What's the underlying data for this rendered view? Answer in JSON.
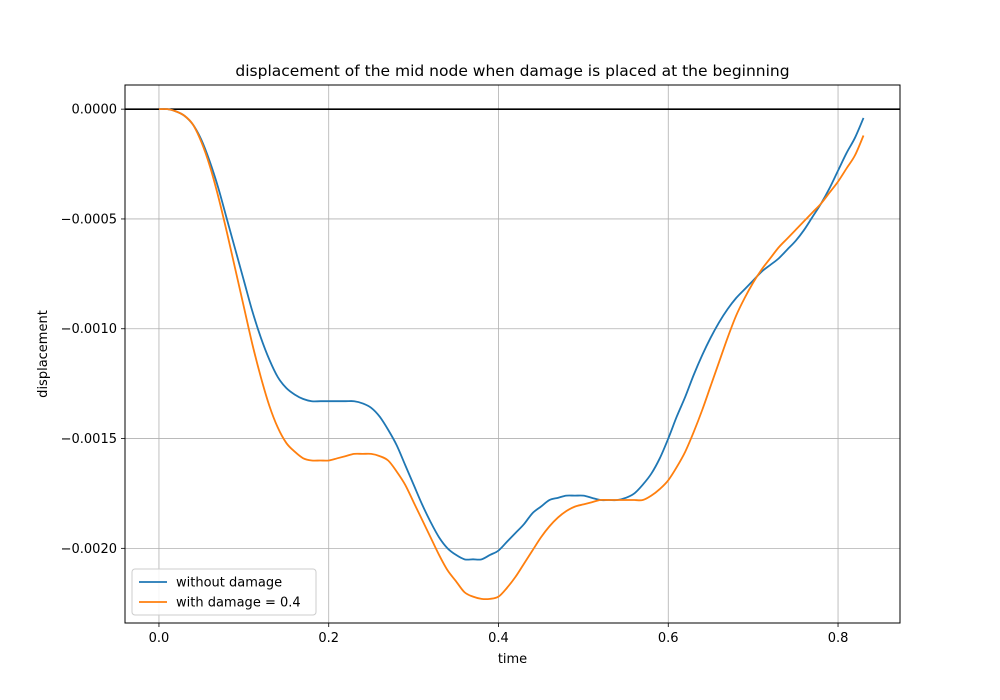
{
  "chart_data": {
    "type": "line",
    "title": "displacement of the mid node when damage is placed at the beginning",
    "xlabel": "time",
    "ylabel": "displacement",
    "xlim": [
      -0.04,
      0.873
    ],
    "ylim": [
      -0.00234,
      0.00011
    ],
    "x_ticks": [
      0.0,
      0.2,
      0.4,
      0.6,
      0.8
    ],
    "x_tick_labels": [
      "0.0",
      "0.2",
      "0.4",
      "0.6",
      "0.8"
    ],
    "y_ticks": [
      0.0,
      -0.0005,
      -0.001,
      -0.0015,
      -0.002
    ],
    "y_tick_labels": [
      "0.0000",
      "−0.0005",
      "−0.0010",
      "−0.0015",
      "−0.0020"
    ],
    "grid": true,
    "reference_line_y": 0.0,
    "legend": {
      "placement": "lower-left"
    },
    "series": [
      {
        "name": "without damage",
        "color": "#1f77b4",
        "x": [
          0.0,
          0.01,
          0.02,
          0.03,
          0.04,
          0.05,
          0.06,
          0.07,
          0.08,
          0.09,
          0.1,
          0.11,
          0.12,
          0.13,
          0.14,
          0.15,
          0.16,
          0.17,
          0.18,
          0.19,
          0.2,
          0.21,
          0.22,
          0.23,
          0.24,
          0.25,
          0.26,
          0.27,
          0.28,
          0.29,
          0.3,
          0.31,
          0.32,
          0.33,
          0.34,
          0.35,
          0.36,
          0.37,
          0.38,
          0.39,
          0.4,
          0.41,
          0.42,
          0.43,
          0.44,
          0.45,
          0.46,
          0.47,
          0.48,
          0.49,
          0.5,
          0.51,
          0.52,
          0.53,
          0.54,
          0.55,
          0.56,
          0.57,
          0.58,
          0.59,
          0.6,
          0.61,
          0.62,
          0.63,
          0.64,
          0.65,
          0.66,
          0.67,
          0.68,
          0.69,
          0.7,
          0.71,
          0.72,
          0.73,
          0.74,
          0.75,
          0.76,
          0.77,
          0.78,
          0.79,
          0.8,
          0.81,
          0.82,
          0.83
        ],
        "y": [
          0.0,
          0.0,
          -1e-05,
          -3e-05,
          -7e-05,
          -0.00014,
          -0.00024,
          -0.00036,
          -0.0005,
          -0.00064,
          -0.00078,
          -0.00092,
          -0.00104,
          -0.00114,
          -0.00122,
          -0.00127,
          -0.0013,
          -0.00132,
          -0.00133,
          -0.00133,
          -0.00133,
          -0.00133,
          -0.00133,
          -0.00133,
          -0.00134,
          -0.00136,
          -0.0014,
          -0.00146,
          -0.00153,
          -0.00162,
          -0.00171,
          -0.0018,
          -0.00188,
          -0.00195,
          -0.002,
          -0.00203,
          -0.00205,
          -0.00205,
          -0.00205,
          -0.00203,
          -0.00201,
          -0.00197,
          -0.00193,
          -0.00189,
          -0.00184,
          -0.00181,
          -0.00178,
          -0.00177,
          -0.00176,
          -0.00176,
          -0.00176,
          -0.00177,
          -0.00178,
          -0.00178,
          -0.00178,
          -0.00177,
          -0.00175,
          -0.00171,
          -0.00166,
          -0.00159,
          -0.0015,
          -0.0014,
          -0.00131,
          -0.00121,
          -0.00112,
          -0.00104,
          -0.00097,
          -0.00091,
          -0.00086,
          -0.00082,
          -0.00078,
          -0.00074,
          -0.00071,
          -0.00068,
          -0.00064,
          -0.0006,
          -0.00055,
          -0.00049,
          -0.00043,
          -0.00036,
          -0.00028,
          -0.0002,
          -0.00013,
          -4e-05
        ]
      },
      {
        "name": "with damage = 0.4",
        "color": "#ff7f0e",
        "x": [
          0.0,
          0.01,
          0.02,
          0.03,
          0.04,
          0.05,
          0.06,
          0.07,
          0.08,
          0.09,
          0.1,
          0.11,
          0.12,
          0.13,
          0.14,
          0.15,
          0.16,
          0.17,
          0.18,
          0.19,
          0.2,
          0.21,
          0.22,
          0.23,
          0.24,
          0.25,
          0.26,
          0.27,
          0.28,
          0.29,
          0.3,
          0.31,
          0.32,
          0.33,
          0.34,
          0.35,
          0.36,
          0.37,
          0.38,
          0.39,
          0.4,
          0.41,
          0.42,
          0.43,
          0.44,
          0.45,
          0.46,
          0.47,
          0.48,
          0.49,
          0.5,
          0.51,
          0.52,
          0.53,
          0.54,
          0.55,
          0.56,
          0.57,
          0.58,
          0.59,
          0.6,
          0.61,
          0.62,
          0.63,
          0.64,
          0.65,
          0.66,
          0.67,
          0.68,
          0.69,
          0.7,
          0.71,
          0.72,
          0.73,
          0.74,
          0.75,
          0.76,
          0.77,
          0.78,
          0.79,
          0.8,
          0.81,
          0.82,
          0.83
        ],
        "y": [
          0.0,
          0.0,
          -1e-05,
          -3e-05,
          -7e-05,
          -0.00015,
          -0.00026,
          -0.0004,
          -0.00056,
          -0.00073,
          -0.0009,
          -0.00107,
          -0.00122,
          -0.00135,
          -0.00145,
          -0.00152,
          -0.00156,
          -0.00159,
          -0.0016,
          -0.0016,
          -0.0016,
          -0.00159,
          -0.00158,
          -0.00157,
          -0.00157,
          -0.00157,
          -0.00158,
          -0.0016,
          -0.00165,
          -0.00171,
          -0.00179,
          -0.00187,
          -0.00195,
          -0.00203,
          -0.0021,
          -0.00215,
          -0.0022,
          -0.00222,
          -0.00223,
          -0.00223,
          -0.00222,
          -0.00218,
          -0.00213,
          -0.00207,
          -0.00201,
          -0.00195,
          -0.0019,
          -0.00186,
          -0.00183,
          -0.00181,
          -0.0018,
          -0.00179,
          -0.00178,
          -0.00178,
          -0.00178,
          -0.00178,
          -0.00178,
          -0.00178,
          -0.00176,
          -0.00173,
          -0.00169,
          -0.00163,
          -0.00156,
          -0.00147,
          -0.00137,
          -0.00126,
          -0.00115,
          -0.00104,
          -0.00094,
          -0.00086,
          -0.00079,
          -0.00073,
          -0.00068,
          -0.00063,
          -0.00059,
          -0.00055,
          -0.00051,
          -0.00047,
          -0.00043,
          -0.00038,
          -0.00033,
          -0.00027,
          -0.00021,
          -0.00012
        ]
      }
    ]
  }
}
